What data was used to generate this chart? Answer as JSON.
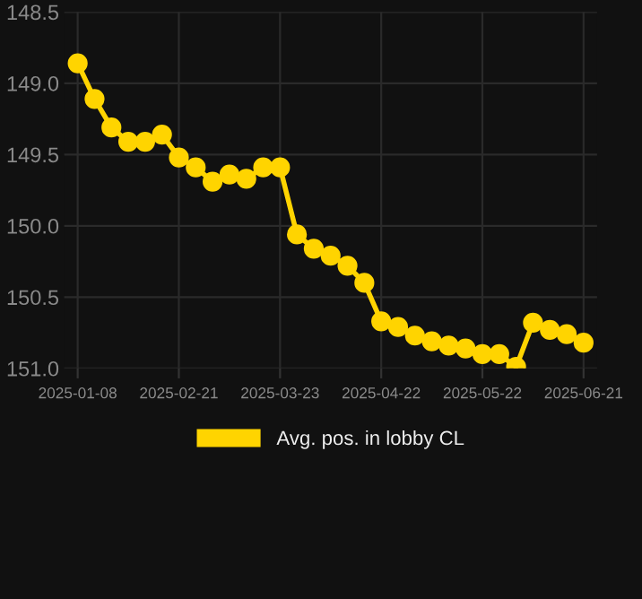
{
  "chart_data": {
    "type": "line",
    "categories": [
      "2025-01-08",
      null,
      null,
      null,
      null,
      null,
      "2025-02-21",
      null,
      null,
      null,
      null,
      null,
      "2025-03-23",
      null,
      null,
      null,
      null,
      null,
      "2025-04-22",
      null,
      null,
      null,
      null,
      null,
      "2025-05-22",
      null,
      null,
      null,
      null,
      null,
      "2025-06-21"
    ],
    "series": [
      {
        "name": "Avg. pos. in lobby CL",
        "color": "#ffd400",
        "values": [
          148.86,
          149.11,
          149.31,
          149.41,
          149.41,
          149.36,
          149.52,
          149.59,
          149.69,
          149.64,
          149.67,
          149.59,
          149.59,
          150.06,
          150.16,
          150.21,
          150.28,
          150.4,
          150.67,
          150.71,
          150.77,
          150.81,
          150.84,
          150.86,
          150.9,
          150.9,
          150.99,
          150.68,
          150.73,
          150.76,
          150.82
        ]
      }
    ],
    "ylim": [
      151.0,
      148.5
    ],
    "yticks": [
      {
        "value": 148.5,
        "label": "148.5"
      },
      {
        "value": 149.0,
        "label": "149.0"
      },
      {
        "value": 149.5,
        "label": "149.5"
      },
      {
        "value": 150.0,
        "label": "150.0"
      },
      {
        "value": 150.5,
        "label": "150.5"
      },
      {
        "value": 151.0,
        "label": "151.0"
      }
    ],
    "grid": true,
    "legend": "bottom",
    "marker": "circle",
    "line_style": "solid"
  }
}
